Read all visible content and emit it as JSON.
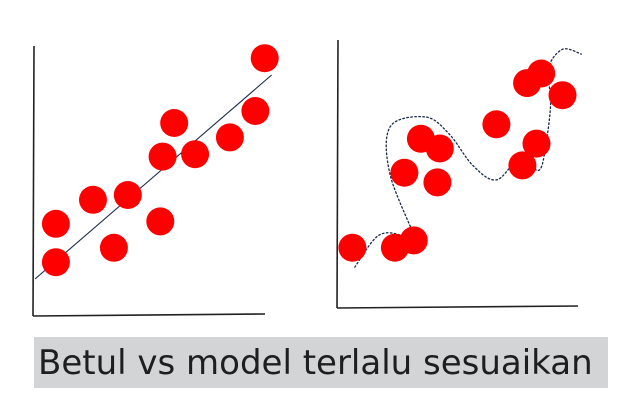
{
  "chart_data": [
    {
      "type": "scatter",
      "title": "",
      "xlabel": "",
      "ylabel": "",
      "grid": false,
      "xlim": [
        0,
        10
      ],
      "ylim": [
        0,
        10
      ],
      "points": [
        {
          "x": 0.9,
          "y": 1.2
        },
        {
          "x": 0.9,
          "y": 2.8
        },
        {
          "x": 2.5,
          "y": 3.8
        },
        {
          "x": 3.4,
          "y": 1.8
        },
        {
          "x": 4.0,
          "y": 4.0
        },
        {
          "x": 5.4,
          "y": 2.9
        },
        {
          "x": 5.5,
          "y": 5.6
        },
        {
          "x": 6.0,
          "y": 7.0
        },
        {
          "x": 6.9,
          "y": 5.7
        },
        {
          "x": 8.4,
          "y": 6.4
        },
        {
          "x": 9.5,
          "y": 7.5
        },
        {
          "x": 9.9,
          "y": 9.7
        }
      ],
      "fit": {
        "kind": "line",
        "points": [
          [
            0,
            0.5
          ],
          [
            10.2,
            9.0
          ]
        ]
      },
      "marker_color": "#ff0000",
      "fit_color": "#1a2a4a"
    },
    {
      "type": "scatter",
      "title": "",
      "xlabel": "",
      "ylabel": "",
      "grid": false,
      "xlim": [
        0,
        10
      ],
      "ylim": [
        0,
        10
      ],
      "points": [
        {
          "x": 0.4,
          "y": 1.5
        },
        {
          "x": 2.2,
          "y": 1.5
        },
        {
          "x": 3.0,
          "y": 1.8
        },
        {
          "x": 2.6,
          "y": 4.6
        },
        {
          "x": 3.3,
          "y": 6.0
        },
        {
          "x": 4.1,
          "y": 5.6
        },
        {
          "x": 4.0,
          "y": 4.2
        },
        {
          "x": 6.5,
          "y": 6.6
        },
        {
          "x": 7.6,
          "y": 4.9
        },
        {
          "x": 8.2,
          "y": 5.8
        },
        {
          "x": 7.8,
          "y": 8.3
        },
        {
          "x": 8.4,
          "y": 8.7
        },
        {
          "x": 9.3,
          "y": 7.8
        }
      ],
      "fit": {
        "kind": "curve",
        "points": [
          [
            0.5,
            0.7
          ],
          [
            1.5,
            2.0
          ],
          [
            2.5,
            2.0
          ],
          [
            3.2,
            1.5
          ],
          [
            2.0,
            4.5
          ],
          [
            2.0,
            6.5
          ],
          [
            3.5,
            6.9
          ],
          [
            4.5,
            6.2
          ],
          [
            5.5,
            4.9
          ],
          [
            6.5,
            4.3
          ],
          [
            7.5,
            5.2
          ],
          [
            8.3,
            4.7
          ],
          [
            8.6,
            5.8
          ],
          [
            8.8,
            7.5
          ],
          [
            8.7,
            8.9
          ],
          [
            9.3,
            9.7
          ],
          [
            10.1,
            9.5
          ]
        ]
      },
      "marker_color": "#ff0000",
      "fit_color": "#1a2a4a"
    }
  ],
  "caption": "Betul vs model terlalu sesuaikan"
}
